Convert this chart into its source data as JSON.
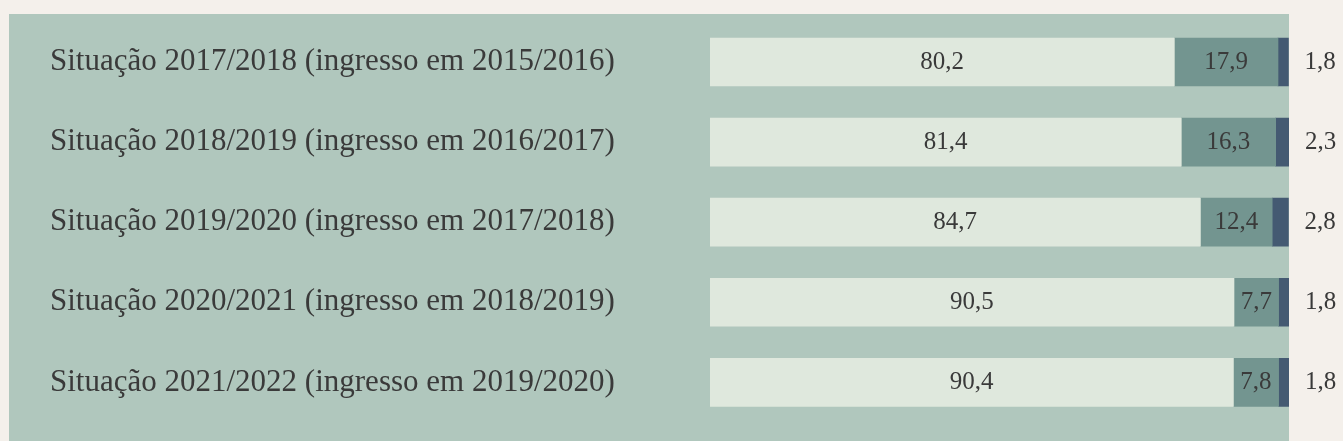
{
  "chart_data": {
    "type": "bar",
    "orientation": "horizontal",
    "stacked": true,
    "legend": false,
    "tick_labels": "y",
    "categories": [
      "Situação 2017/2018 (ingresso em 2015/2016)",
      "Situação 2018/2019 (ingresso em 2016/2017)",
      "Situação 2019/2020 (ingresso em 2017/2018)",
      "Situação 2020/2021 (ingresso em 2018/2019)",
      "Situação 2021/2022 (ingresso em 2019/2020)"
    ],
    "series": [
      {
        "color": "#dfe8dd",
        "values": [
          80.2,
          81.4,
          84.7,
          90.5,
          90.4
        ],
        "value_labels": [
          "80,2",
          "81,4",
          "84,7",
          "90,5",
          "90,4"
        ]
      },
      {
        "color": "#739590",
        "values": [
          17.9,
          16.3,
          12.4,
          7.7,
          7.8
        ],
        "value_labels": [
          "17,9",
          "16,3",
          "12,4",
          "7,7",
          "7,8"
        ]
      },
      {
        "color": "#445a72",
        "values": [
          1.8,
          2.3,
          2.8,
          1.8,
          1.8
        ],
        "value_labels": [
          "1,8",
          "2,3",
          "2,8",
          "1,8",
          "1,8"
        ]
      }
    ]
  }
}
